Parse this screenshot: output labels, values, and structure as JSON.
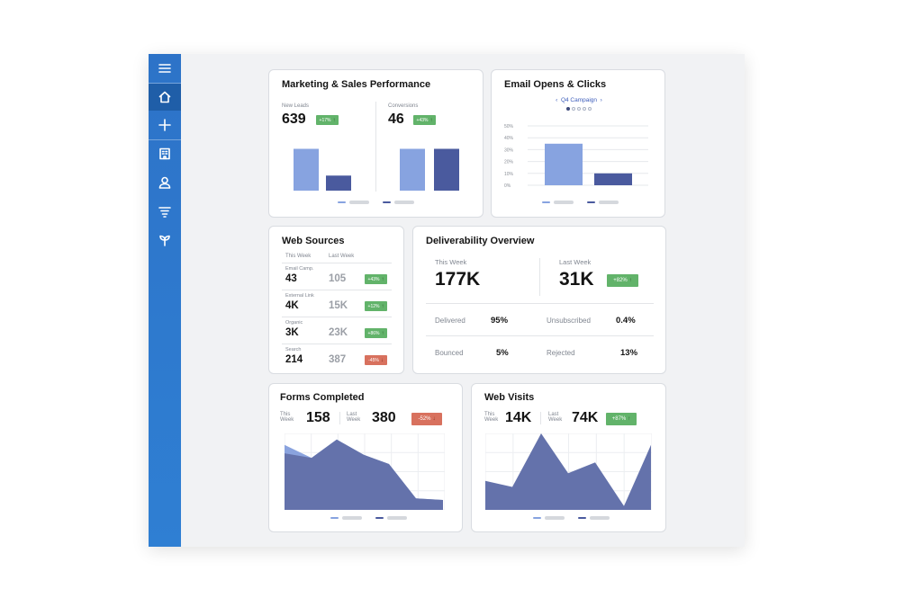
{
  "sidebar": {
    "items": [
      {
        "icon": "menu-icon",
        "active": false
      },
      {
        "icon": "home-icon",
        "active": true
      },
      {
        "icon": "plus-icon",
        "active": false
      },
      {
        "icon": "building-icon",
        "active": false
      },
      {
        "icon": "user-icon",
        "active": false
      },
      {
        "icon": "filter-icon",
        "active": false
      },
      {
        "icon": "sprout-icon",
        "active": false
      }
    ]
  },
  "colors": {
    "sidebar": "#2f7fd3",
    "light_bar": "#87a3e0",
    "dark_bar": "#4a5a9e",
    "area": "#6472ab",
    "light_area": "#8aa3de",
    "badge_up": "#62b36a",
    "badge_down": "#d8715e"
  },
  "marketing": {
    "title": "Marketing & Sales Performance",
    "new_leads_label": "New Leads",
    "new_leads_value": "639",
    "new_leads_badge": "+17%",
    "conversions_label": "Conversions",
    "conversions_value": "46",
    "conversions_badge": "+43%"
  },
  "email": {
    "title": "Email Opens & Clicks",
    "campaign": "Q4 Campaign",
    "pager_dots": 5,
    "pager_active": 0
  },
  "web_sources": {
    "title": "Web Sources",
    "col_this_week": "This Week",
    "col_last_week": "Last Week",
    "rows": [
      {
        "label": "Email Camp.",
        "this_week": "43",
        "last_week": "105",
        "badge": "+43%",
        "direction": "up"
      },
      {
        "label": "External Link",
        "this_week": "4K",
        "last_week": "15K",
        "badge": "+12%",
        "direction": "up"
      },
      {
        "label": "Organic",
        "this_week": "3K",
        "last_week": "23K",
        "badge": "+86%",
        "direction": "up"
      },
      {
        "label": "Search",
        "this_week": "214",
        "last_week": "387",
        "badge": "-45%",
        "direction": "down"
      }
    ]
  },
  "deliverability": {
    "title": "Deliverability Overview",
    "this_week_label": "This Week",
    "this_week_value": "177K",
    "last_week_label": "Last Week",
    "last_week_value": "31K",
    "badge": "+82%",
    "stats": [
      {
        "label": "Delivered",
        "value": "95%"
      },
      {
        "label": "Unsubscribed",
        "value": "0.4%"
      },
      {
        "label": "Bounced",
        "value": "5%"
      },
      {
        "label": "Rejected",
        "value": "13%"
      }
    ]
  },
  "forms": {
    "title": "Forms Completed",
    "this_week_label_1": "This",
    "this_week_label_2": "Week",
    "this_week_value": "158",
    "last_week_label_1": "Last",
    "last_week_label_2": "Week",
    "last_week_value": "380",
    "badge": "-52%"
  },
  "visits": {
    "title": "Web Visits",
    "this_week_label_1": "This",
    "this_week_label_2": "Week",
    "this_week_value": "14K",
    "last_week_label_1": "Last",
    "last_week_label_2": "Week",
    "last_week_value": "74K",
    "badge": "+87%"
  },
  "chart_data": [
    {
      "type": "bar",
      "series": [
        {
          "values": [
            0.75,
            0.75
          ]
        },
        {
          "values": [
            0.27,
            0.75
          ]
        }
      ]
    },
    {
      "type": "bar",
      "yticks": [
        "0%",
        "10%",
        "20%",
        "30%",
        "40%",
        "50%"
      ],
      "ylim": [
        0,
        50
      ],
      "categories": [
        "",
        ""
      ],
      "values": [
        35,
        10
      ]
    },
    {
      "type": "area",
      "series": [
        {
          "values": [
            0.85,
            0.68,
            0.92,
            0.72,
            0.6,
            0.15,
            0.13
          ]
        },
        {
          "values": [
            0.74,
            0.68,
            0.92,
            0.72,
            0.6,
            0.15,
            0.13
          ]
        }
      ]
    },
    {
      "type": "area",
      "values": [
        0.38,
        0.3,
        1.0,
        0.48,
        0.62,
        0.05,
        0.85
      ]
    }
  ]
}
